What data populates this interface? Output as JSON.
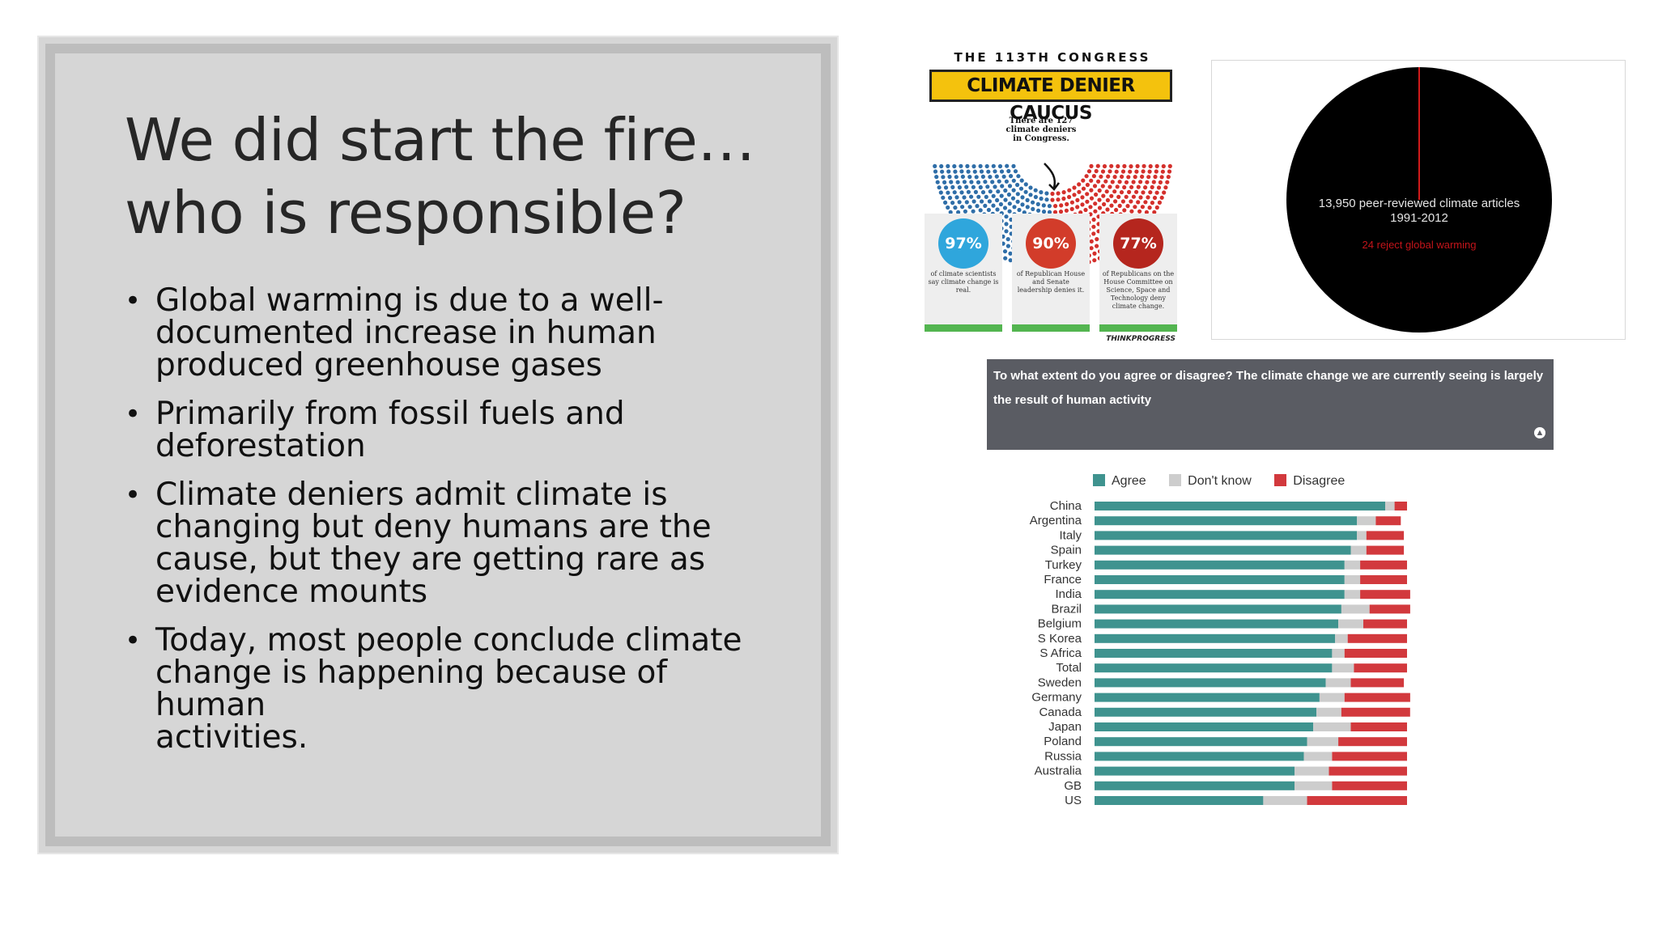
{
  "slide": {
    "title_line1": "We did start the fire…",
    "title_line2": "who is responsible?",
    "bullets": [
      "Global warming is due to a well-documented increase in human produced greenhouse gases",
      "Primarily from fossil fuels and deforestation",
      "Climate deniers admit climate is changing but deny humans are the cause, but they are getting rare as evidence mounts",
      "Today, most people conclude climate change is happening because of human activities."
    ],
    "bullet_lines": [
      [
        "Global warming is due to a well-",
        "documented increase in human",
        "produced greenhouse gases"
      ],
      [
        "Primarily from fossil fuels and",
        "deforestation"
      ],
      [
        "Climate deniers admit climate is",
        "changing but deny humans are the",
        "cause, but they are getting rare as",
        "evidence mounts"
      ],
      [
        "Today, most people conclude climate",
        "change is happening because of human",
        "activities."
      ]
    ]
  },
  "congress_graphic": {
    "header": "THE 113TH CONGRESS",
    "banner": "CLIMATE DENIER CAUCUS",
    "note": "There are 127 climate deniers in Congress.",
    "stats": [
      {
        "value": "97%",
        "text": "of climate scientists say climate change is real.",
        "color": "#2fa6dc"
      },
      {
        "value": "90%",
        "text": "of Republican House and Senate leadership denies it.",
        "color": "#d23c2a"
      },
      {
        "value": "77%",
        "text": "of Republicans on the House Committee on Science, Space and Technology deny climate change.",
        "color": "#b5261e"
      }
    ],
    "credit": "THINKPROGRESS"
  },
  "pie_graphic": {
    "label_line1": "13,950 peer-reviewed climate articles",
    "label_line2": "1991-2012",
    "label_red": "24 reject global warming"
  },
  "survey": {
    "question": "To what extent do you agree or disagree? The climate change we are currently seeing is largely the result of human activity",
    "question_line1": "To what extent do you agree or disagree? The climate change we are currently seeing is largely",
    "question_line2": "the result of human activity",
    "colors": {
      "agree": "#3f938f",
      "dont_know": "#cdcdcd",
      "disagree": "#d2393d"
    }
  },
  "chart_data": {
    "type": "bar",
    "stacked": true,
    "orientation": "horizontal",
    "legend": [
      "Agree",
      "Don't know",
      "Disagree"
    ],
    "legend_position": "top",
    "categories": [
      "China",
      "Argentina",
      "Italy",
      "Spain",
      "Turkey",
      "France",
      "India",
      "Brazil",
      "Belgium",
      "S Korea",
      "S Africa",
      "Total",
      "Sweden",
      "Germany",
      "Canada",
      "Japan",
      "Poland",
      "Russia",
      "Australia",
      "GB",
      "US"
    ],
    "series": [
      {
        "name": "Agree",
        "values": [
          93,
          84,
          84,
          82,
          80,
          80,
          80,
          79,
          78,
          77,
          76,
          76,
          74,
          72,
          71,
          70,
          68,
          67,
          64,
          64,
          54
        ]
      },
      {
        "name": "Don't know",
        "values": [
          3,
          6,
          3,
          5,
          5,
          5,
          5,
          9,
          8,
          4,
          4,
          7,
          8,
          8,
          8,
          12,
          10,
          9,
          11,
          12,
          14
        ]
      },
      {
        "name": "Disagree",
        "values": [
          4,
          8,
          12,
          12,
          15,
          15,
          16,
          13,
          14,
          19,
          20,
          17,
          17,
          21,
          22,
          18,
          22,
          24,
          25,
          24,
          32
        ]
      }
    ],
    "xlim": [
      0,
      100
    ]
  }
}
